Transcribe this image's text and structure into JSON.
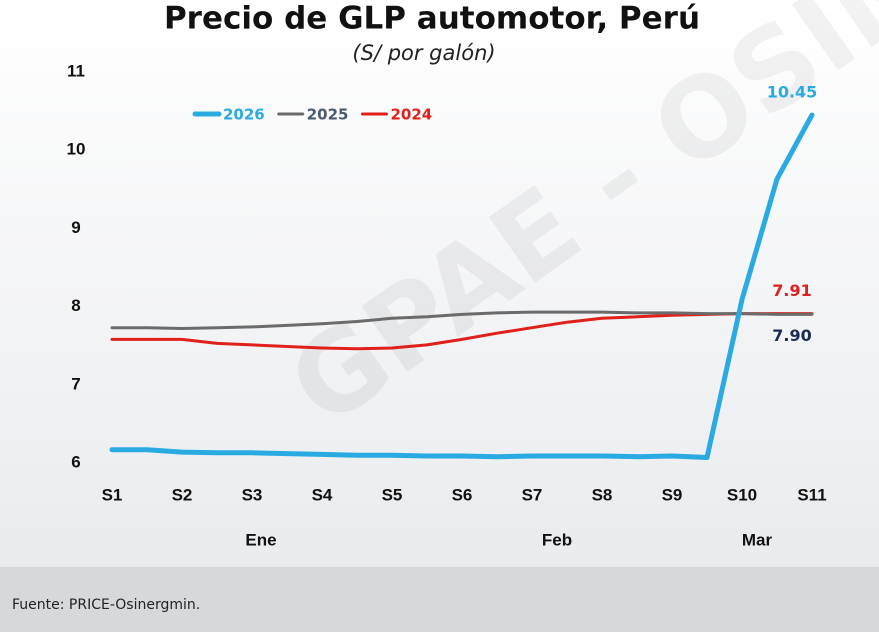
{
  "chart_data": {
    "type": "line",
    "title": "Precio de GLP automotor, Perú",
    "subtitle": "(S/ por galón)",
    "x": [
      1,
      1.5,
      2,
      2.5,
      3,
      3.5,
      4,
      4.5,
      5,
      5.5,
      6,
      6.5,
      7,
      7.5,
      8,
      8.5,
      9,
      9.5,
      10,
      10.5,
      11
    ],
    "xlim": [
      1,
      11
    ],
    "xticks": [
      {
        "value": 1,
        "label": "S1"
      },
      {
        "value": 2,
        "label": "S2"
      },
      {
        "value": 3,
        "label": "S3"
      },
      {
        "value": 4,
        "label": "S4"
      },
      {
        "value": 5,
        "label": "S5"
      },
      {
        "value": 6,
        "label": "S6"
      },
      {
        "value": 7,
        "label": "S7"
      },
      {
        "value": 8,
        "label": "S8"
      },
      {
        "value": 9,
        "label": "S9"
      },
      {
        "value": 10,
        "label": "S10"
      },
      {
        "value": 11,
        "label": "S11"
      }
    ],
    "months": [
      "Ene",
      "Feb",
      "Mar"
    ],
    "ylim": [
      6,
      11
    ],
    "yticks": [
      6,
      7,
      8,
      9,
      10,
      11
    ],
    "grid": false,
    "legend": "top-left",
    "series": [
      {
        "name": "2026",
        "color": "#29abe2",
        "values": [
          6.17,
          6.17,
          6.14,
          6.13,
          6.13,
          6.12,
          6.11,
          6.1,
          6.1,
          6.09,
          6.09,
          6.08,
          6.09,
          6.09,
          6.09,
          6.08,
          6.09,
          6.07,
          8.09,
          9.63,
          10.45
        ],
        "value_labels": [
          null,
          null,
          null,
          null,
          null,
          null,
          null,
          null,
          null,
          null,
          null,
          null,
          null,
          null,
          null,
          null,
          null,
          null,
          null,
          null,
          "10.45"
        ]
      },
      {
        "name": "2025",
        "color": "#6b6b6b",
        "values": [
          7.73,
          7.73,
          7.72,
          7.73,
          7.74,
          7.76,
          7.78,
          7.81,
          7.85,
          7.87,
          7.9,
          7.92,
          7.93,
          7.93,
          7.93,
          7.92,
          7.92,
          7.91,
          7.91,
          7.9,
          7.9
        ],
        "value_labels": [
          null,
          null,
          null,
          null,
          null,
          null,
          null,
          null,
          null,
          null,
          null,
          null,
          null,
          null,
          null,
          null,
          null,
          null,
          null,
          null,
          "7.90"
        ]
      },
      {
        "name": "2024",
        "color": "#e0201b",
        "values": [
          7.58,
          7.58,
          7.58,
          7.53,
          7.51,
          7.49,
          7.47,
          7.46,
          7.47,
          7.51,
          7.58,
          7.66,
          7.73,
          7.8,
          7.85,
          7.87,
          7.89,
          7.9,
          7.91,
          7.91,
          7.91
        ],
        "value_labels": [
          null,
          null,
          null,
          null,
          null,
          null,
          null,
          null,
          null,
          null,
          null,
          null,
          null,
          null,
          null,
          null,
          null,
          null,
          null,
          null,
          "7.91"
        ]
      }
    ],
    "watermark": "GPAE - OSIN",
    "source": "Fuente: PRICE-Osinergmin."
  }
}
